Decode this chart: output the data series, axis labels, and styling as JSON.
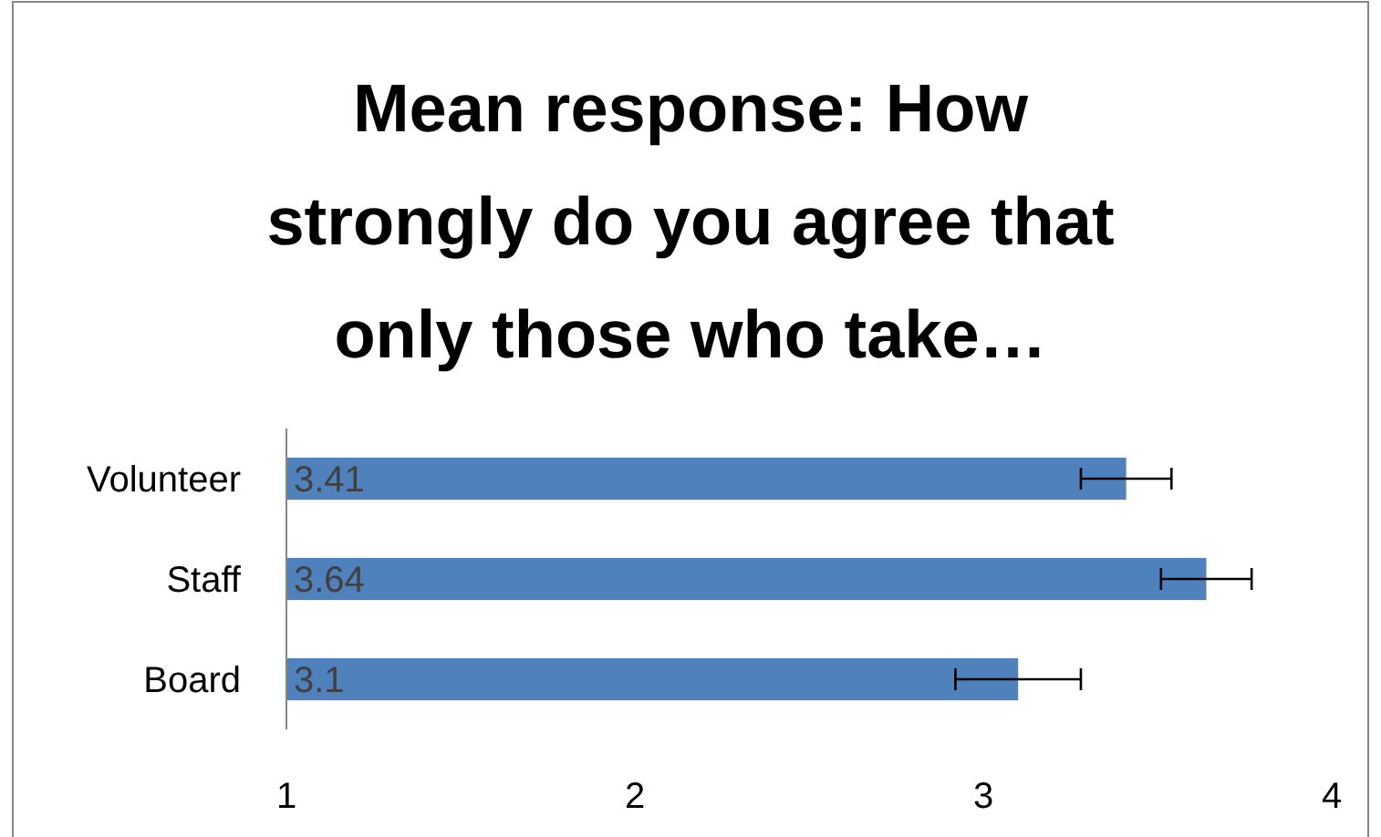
{
  "chart_data": {
    "type": "bar",
    "orientation": "horizontal",
    "title": "Mean response: How strongly do you agree that only those who take…",
    "categories": [
      "Volunteer",
      "Staff",
      "Board"
    ],
    "values": [
      3.41,
      3.64,
      3.1
    ],
    "errors": [
      0.13,
      0.13,
      0.18
    ],
    "color": "#4f81bd",
    "xlim": [
      1,
      4
    ],
    "xticks": [
      1,
      2,
      3,
      4
    ],
    "data_labels": true,
    "grid": false
  }
}
